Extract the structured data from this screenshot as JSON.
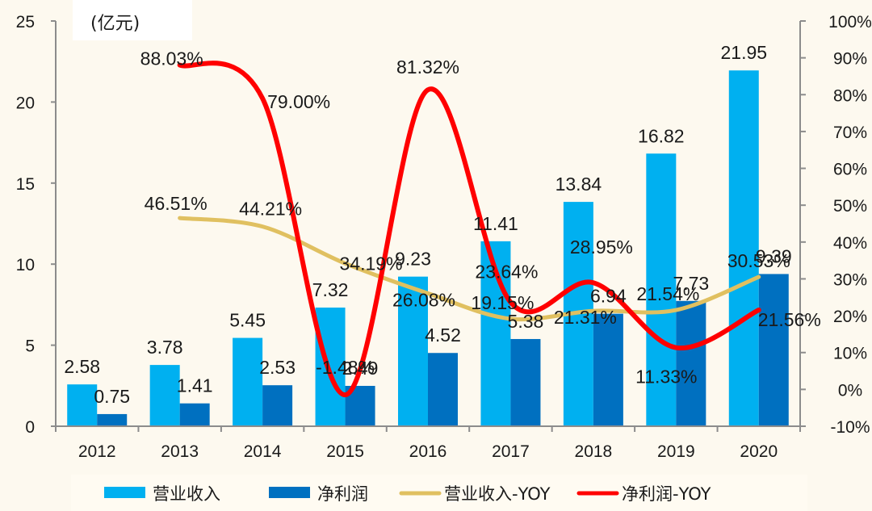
{
  "chart_data": {
    "type": "bar",
    "title": "",
    "unit_label": "(亿元)",
    "xlabel": "",
    "ylabel": "",
    "categories": [
      "2012",
      "2013",
      "2014",
      "2015",
      "2016",
      "2017",
      "2018",
      "2019",
      "2020"
    ],
    "y_left": {
      "range": [
        0,
        25
      ],
      "ticks": [
        0,
        5,
        10,
        15,
        20,
        25
      ],
      "tick_labels": [
        "0",
        "5",
        "10",
        "15",
        "20",
        "25"
      ]
    },
    "y_right": {
      "range": [
        -10,
        100
      ],
      "ticks": [
        -10,
        0,
        10,
        20,
        30,
        40,
        50,
        60,
        70,
        80,
        90,
        100
      ],
      "tick_labels": [
        "-10%",
        "0%",
        "10%",
        "20%",
        "30%",
        "40%",
        "50%",
        "60%",
        "70%",
        "80%",
        "90%",
        "100%"
      ]
    },
    "grid": false,
    "legend_position": "bottom",
    "series": [
      {
        "name": "营业收入",
        "type": "bar",
        "axis": "left",
        "color": "#00b0f0",
        "values": [
          2.58,
          3.78,
          5.45,
          7.32,
          9.23,
          11.41,
          13.84,
          16.82,
          21.95
        ],
        "labels": [
          "2.58",
          "3.78",
          "5.45",
          "7.32",
          "9.23",
          "11.41",
          "13.84",
          "16.82",
          "21.95"
        ]
      },
      {
        "name": "净利润",
        "type": "bar",
        "axis": "left",
        "color": "#0070c0",
        "values": [
          0.75,
          1.41,
          2.53,
          2.49,
          4.52,
          5.38,
          6.94,
          7.73,
          9.39
        ],
        "labels": [
          "0.75",
          "1.41",
          "2.53",
          "2.49",
          "4.52",
          "5.38",
          "6.94",
          "7.73",
          "9.39"
        ]
      },
      {
        "name": "营业收入-YOY",
        "type": "line",
        "axis": "right",
        "color": "#e0c060",
        "values": [
          null,
          46.51,
          44.21,
          34.19,
          26.08,
          19.15,
          21.31,
          21.54,
          30.53
        ],
        "labels": [
          null,
          "46.51%",
          "44.21%",
          "34.19%",
          "26.08%",
          "19.15%",
          "21.31%",
          "21.54%",
          "30.53%"
        ]
      },
      {
        "name": "净利润-YOY",
        "type": "line",
        "axis": "right",
        "color": "#ff0000",
        "values": [
          null,
          88.03,
          79.0,
          -1.48,
          81.32,
          23.64,
          28.95,
          11.33,
          21.56
        ],
        "labels": [
          null,
          "88.03%",
          "79.00%",
          "-1.48%",
          "81.32%",
          "23.64%",
          "28.95%",
          "11.33%",
          "21.56%"
        ]
      }
    ]
  }
}
